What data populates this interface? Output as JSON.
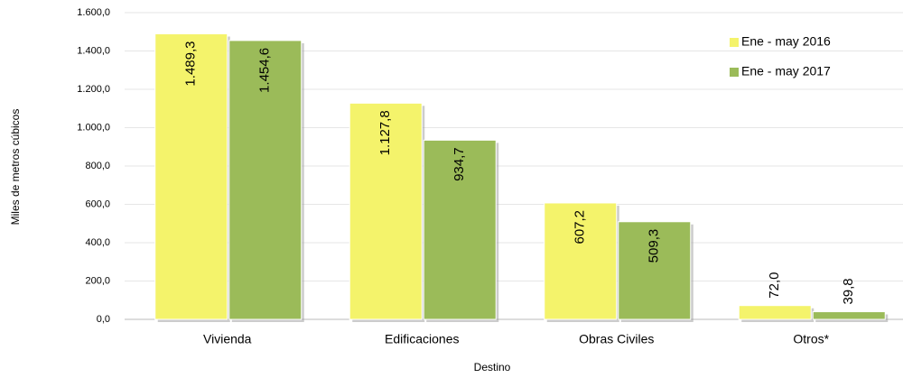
{
  "chart_data": {
    "type": "bar",
    "x_label": "Destino",
    "y_label": "Miles de metros cúbicos",
    "categories": [
      "Vivienda",
      "Edificaciones",
      "Obras Civiles",
      "Otros*"
    ],
    "series": [
      {
        "name": "Ene - may 2016",
        "color": "#f4f36b",
        "values": [
          1489.3,
          1127.8,
          607.2,
          72.0
        ],
        "value_labels": [
          "1.489,3",
          "1.127,8",
          "607,2",
          "72,0"
        ]
      },
      {
        "name": "Ene - may 2017",
        "color": "#9bbb59",
        "values": [
          1454.6,
          934.7,
          509.3,
          39.8
        ],
        "value_labels": [
          "1.454,6",
          "934,7",
          "509,3",
          "39,8"
        ]
      }
    ],
    "ylim": [
      0,
      1600
    ],
    "yticks": [
      {
        "value": 0,
        "label": "0,0"
      },
      {
        "value": 200,
        "label": "200,0"
      },
      {
        "value": 400,
        "label": "400,0"
      },
      {
        "value": 600,
        "label": "600,0"
      },
      {
        "value": 800,
        "label": "800,0"
      },
      {
        "value": 1000,
        "label": "1.000,0"
      },
      {
        "value": 1200,
        "label": "1.200,0"
      },
      {
        "value": 1400,
        "label": "1.400,0"
      },
      {
        "value": 1600,
        "label": "1.600,0"
      }
    ],
    "grid": true,
    "legend": "upper right"
  }
}
